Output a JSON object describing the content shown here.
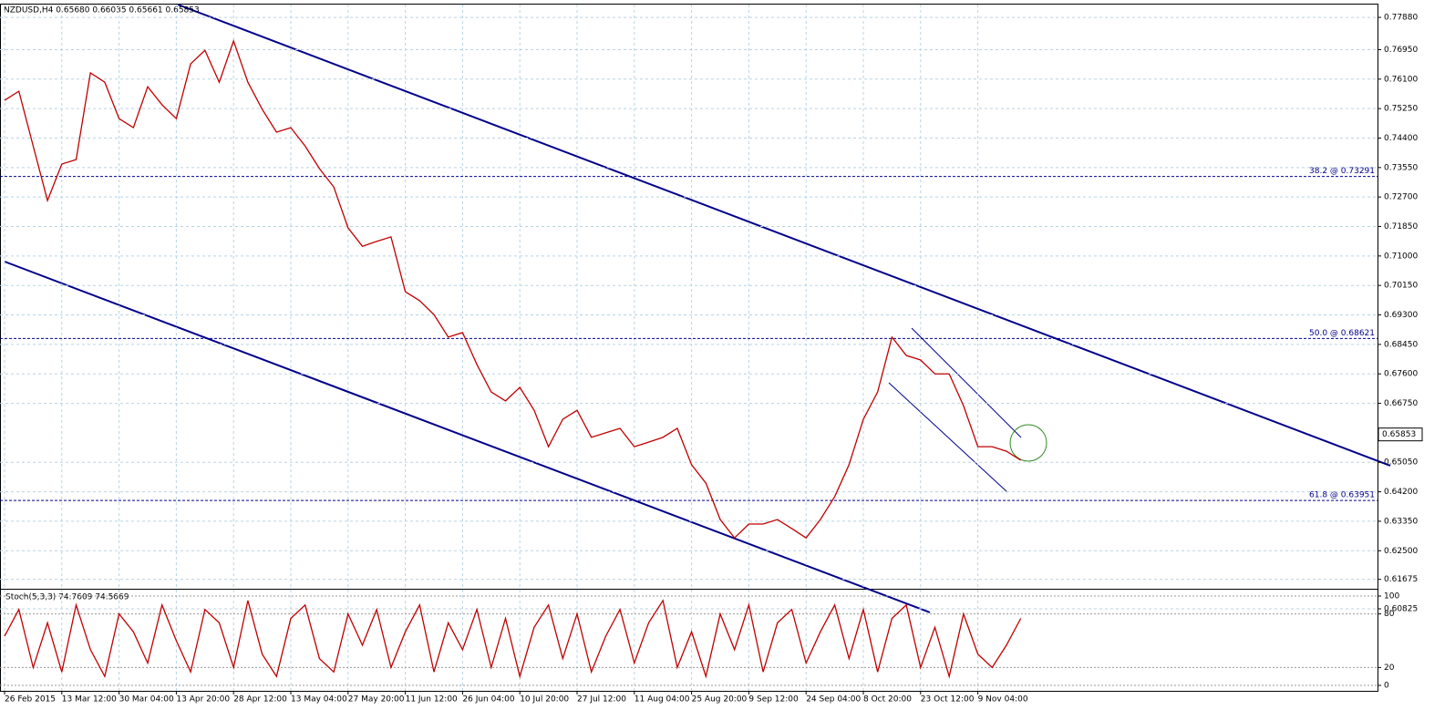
{
  "chart_data": [
    {
      "type": "line",
      "title": "NZDUSD,H4 0.65680 0.66035 0.65661 0.65853",
      "color": "#c00000",
      "grid": true,
      "categories": [
        "26 Feb 2015",
        null,
        null,
        null,
        "13 Mar 12:00",
        null,
        null,
        null,
        "30 Mar 04:00",
        null,
        null,
        null,
        "13 Apr 20:00",
        null,
        null,
        null,
        "28 Apr 12:00",
        null,
        null,
        null,
        "13 May 04:00",
        null,
        null,
        null,
        "27 May 20:00",
        null,
        null,
        null,
        "11 Jun 12:00",
        null,
        null,
        null,
        "26 Jun 04:00",
        null,
        null,
        null,
        "10 Jul 20:00",
        null,
        null,
        null,
        "27 Jul 12:00",
        null,
        null,
        null,
        "11 Aug 04:00",
        null,
        null,
        null,
        "25 Aug 20:00",
        null,
        null,
        null,
        "9 Sep 12:00",
        null,
        null,
        null,
        "24 Sep 04:00",
        null,
        null,
        null,
        "8 Oct 20:00",
        null,
        null,
        null,
        "23 Oct 12:00",
        null,
        null,
        null,
        "9 Nov 04:00",
        null,
        null,
        null
      ],
      "values": [
        0.7549,
        0.7575,
        0.7417,
        0.726,
        0.7365,
        0.7378,
        0.7628,
        0.7601,
        0.7496,
        0.747,
        0.7588,
        0.7536,
        0.7496,
        0.7654,
        0.7693,
        0.7601,
        0.772,
        0.7601,
        0.7523,
        0.7457,
        0.747,
        0.7417,
        0.7352,
        0.7299,
        0.7181,
        0.7128,
        0.7142,
        0.7155,
        0.6997,
        0.6971,
        0.6931,
        0.6866,
        0.6879,
        0.6787,
        0.6708,
        0.6682,
        0.6721,
        0.6655,
        0.655,
        0.6629,
        0.6655,
        0.6577,
        0.659,
        0.6603,
        0.655,
        0.6563,
        0.6577,
        0.6603,
        0.6498,
        0.6445,
        0.634,
        0.6287,
        0.6327,
        0.6327,
        0.634,
        0.6314,
        0.6287,
        0.634,
        0.6406,
        0.6498,
        0.6629,
        0.6708,
        0.6866,
        0.6813,
        0.68,
        0.676,
        0.676,
        0.6668,
        0.655,
        0.655,
        0.6537,
        0.6511
      ],
      "ylim": [
        0.6072,
        0.7825
      ],
      "yticks": [
        {
          "value": 0.7788,
          "label": "0.77880"
        },
        {
          "value": 0.7695,
          "label": "0.76950"
        },
        {
          "value": 0.761,
          "label": "0.76100"
        },
        {
          "value": 0.7525,
          "label": "0.75250"
        },
        {
          "value": 0.744,
          "label": "0.74400"
        },
        {
          "value": 0.7355,
          "label": "0.73550"
        },
        {
          "value": 0.727,
          "label": "0.72700"
        },
        {
          "value": 0.7185,
          "label": "0.71850"
        },
        {
          "value": 0.71,
          "label": "0.71000"
        },
        {
          "value": 0.7015,
          "label": "0.70150"
        },
        {
          "value": 0.693,
          "label": "0.69300"
        },
        {
          "value": 0.6845,
          "label": "0.68450"
        },
        {
          "value": 0.676,
          "label": "0.67600"
        },
        {
          "value": 0.6675,
          "label": "0.66750"
        },
        {
          "value": 0.6505,
          "label": "0.65050"
        },
        {
          "value": 0.642,
          "label": "0.64200"
        },
        {
          "value": 0.6335,
          "label": "0.63350"
        },
        {
          "value": 0.625,
          "label": "0.62500"
        },
        {
          "value": 0.61675,
          "label": "0.61675"
        },
        {
          "value": 0.60825,
          "label": "0.60825"
        }
      ],
      "levels": [
        {
          "value": 0.73291,
          "label": "38.2 @ 0.73291"
        },
        {
          "value": 0.68621,
          "label": "50.0 @ 0.68621"
        },
        {
          "value": 0.63951,
          "label": "61.8 @ 0.63951"
        }
      ],
      "last_price": 0.65853
    },
    {
      "type": "line",
      "title": "Stoch(5,3,3) 74.7609 74.5669",
      "color": "#c00000",
      "values": [
        55,
        85,
        20,
        70,
        15,
        90,
        40,
        10,
        80,
        60,
        25,
        90,
        50,
        15,
        85,
        70,
        20,
        95,
        35,
        10,
        75,
        90,
        30,
        15,
        80,
        45,
        85,
        20,
        60,
        90,
        15,
        70,
        40,
        85,
        20,
        75,
        10,
        65,
        90,
        30,
        80,
        15,
        55,
        85,
        25,
        70,
        95,
        20,
        60,
        10,
        80,
        40,
        90,
        15,
        70,
        85,
        25,
        60,
        90,
        30,
        85,
        15,
        75,
        90,
        20,
        65,
        10,
        80,
        35,
        20,
        45,
        75
      ],
      "ylim": [
        0,
        100
      ],
      "yticks": [
        0,
        20,
        80,
        100
      ]
    }
  ]
}
